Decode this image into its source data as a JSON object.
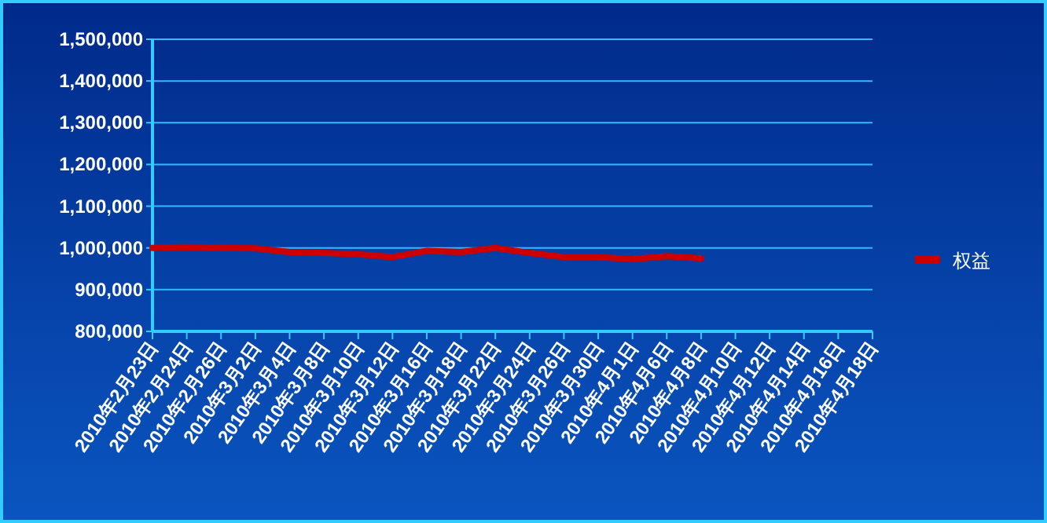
{
  "chart_data": {
    "type": "line",
    "categories": [
      "2010年2月23日",
      "2010年2月24日",
      "2010年2月26日",
      "2010年3月2日",
      "2010年3月4日",
      "2010年3月8日",
      "2010年3月10日",
      "2010年3月12日",
      "2010年3月16日",
      "2010年3月18日",
      "2010年3月22日",
      "2010年3月24日",
      "2010年3月26日",
      "2010年3月30日",
      "2010年4月1日",
      "2010年4月6日",
      "2010年4月8日",
      "2010年4月10日",
      "2010年4月12日",
      "2010年4月14日",
      "2010年4月16日",
      "2010年4月18日"
    ],
    "series": [
      {
        "name": "权益",
        "color": "#cc0000",
        "values": [
          1000000,
          1002000,
          1000000,
          999000,
          990000,
          988000,
          985000,
          978000,
          993000,
          990000,
          1000000,
          988000,
          978000,
          978000,
          973000,
          980000,
          975000,
          null,
          null,
          null,
          null,
          null
        ]
      }
    ],
    "ylim": [
      800000,
      1500000
    ],
    "yticks": [
      {
        "value": 800000,
        "label": "800,000"
      },
      {
        "value": 900000,
        "label": "900,000"
      },
      {
        "value": 1000000,
        "label": "1,000,000"
      },
      {
        "value": 1100000,
        "label": "1,100,000"
      },
      {
        "value": 1200000,
        "label": "1,200,000"
      },
      {
        "value": 1300000,
        "label": "1,300,000"
      },
      {
        "value": 1400000,
        "label": "1,400,000"
      },
      {
        "value": 1500000,
        "label": "1,500,000"
      }
    ],
    "grid": "y",
    "legend": "right",
    "marker": "none",
    "line_style": "solid"
  }
}
